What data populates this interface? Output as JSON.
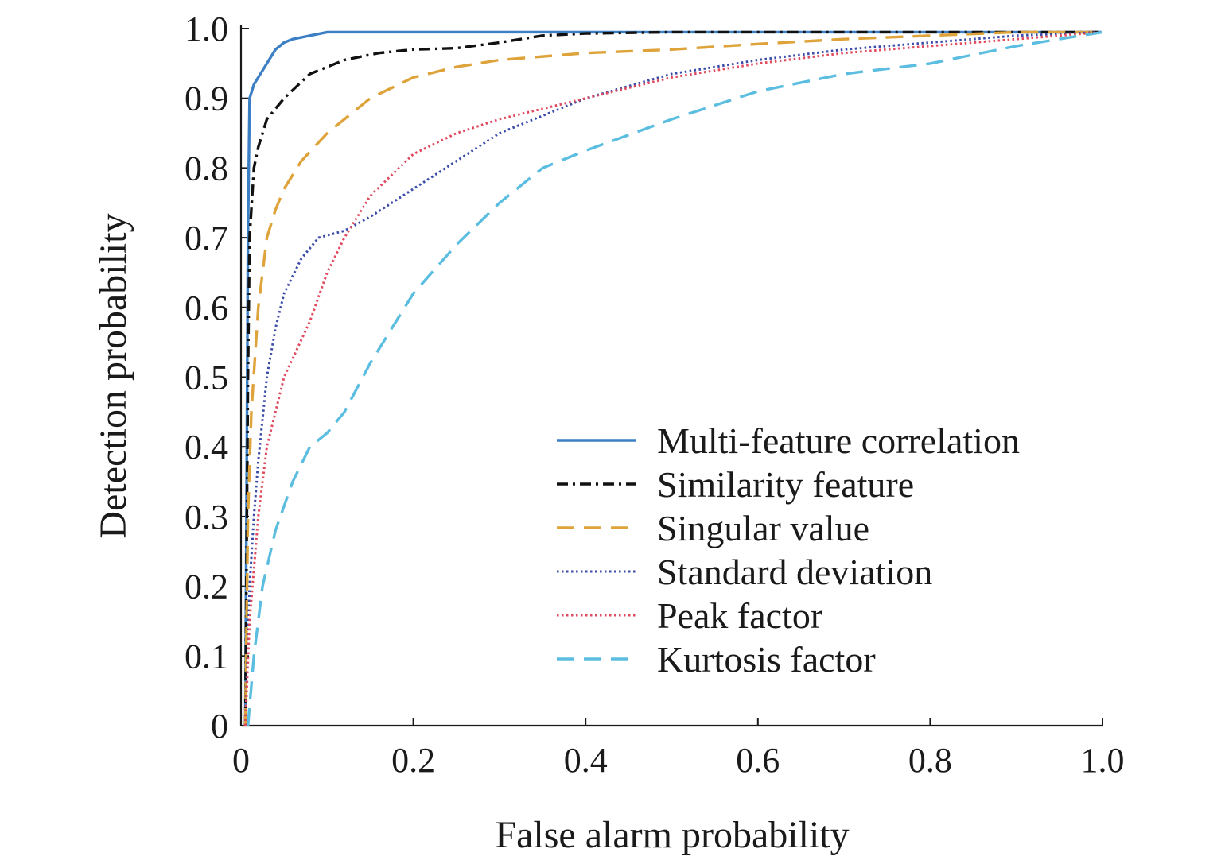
{
  "chart_data": {
    "type": "line",
    "title": "",
    "xlabel": "False alarm probability",
    "ylabel": "Detection probability",
    "xlim": [
      0,
      1.0
    ],
    "ylim": [
      0,
      1.0
    ],
    "x_ticks": [
      "0",
      "0.2",
      "0.4",
      "0.6",
      "0.8",
      "1.0"
    ],
    "y_ticks": [
      "0",
      "0.1",
      "0.2",
      "0.3",
      "0.4",
      "0.5",
      "0.6",
      "0.7",
      "0.8",
      "0.9",
      "1.0"
    ],
    "grid": false,
    "legend_position": "lower-right",
    "series": [
      {
        "name": "Multi-feature correlation",
        "color": "#3d7fc4",
        "style": "solid",
        "x": [
          0.005,
          0.008,
          0.01,
          0.015,
          0.02,
          0.03,
          0.04,
          0.05,
          0.06,
          0.08,
          0.1,
          0.2,
          0.4,
          0.6,
          0.8,
          1.0
        ],
        "y": [
          0.0,
          0.7,
          0.9,
          0.92,
          0.93,
          0.95,
          0.97,
          0.98,
          0.985,
          0.99,
          0.995,
          0.995,
          0.995,
          0.995,
          0.995,
          0.995
        ]
      },
      {
        "name": "Similarity feature",
        "color": "#111111",
        "style": "dashdot",
        "x": [
          0.005,
          0.008,
          0.01,
          0.015,
          0.02,
          0.03,
          0.05,
          0.08,
          0.12,
          0.16,
          0.2,
          0.25,
          0.3,
          0.35,
          0.4,
          0.5,
          0.7,
          1.0
        ],
        "y": [
          0.0,
          0.5,
          0.7,
          0.8,
          0.83,
          0.87,
          0.9,
          0.935,
          0.955,
          0.965,
          0.97,
          0.972,
          0.98,
          0.99,
          0.993,
          0.995,
          0.995,
          0.995
        ]
      },
      {
        "name": "Singular value",
        "color": "#dea33a",
        "style": "dashed",
        "x": [
          0.005,
          0.008,
          0.012,
          0.02,
          0.03,
          0.04,
          0.05,
          0.07,
          0.1,
          0.15,
          0.2,
          0.25,
          0.3,
          0.4,
          0.5,
          0.6,
          0.7,
          0.8,
          0.9,
          1.0
        ],
        "y": [
          0.0,
          0.3,
          0.45,
          0.6,
          0.7,
          0.74,
          0.77,
          0.81,
          0.85,
          0.9,
          0.93,
          0.945,
          0.955,
          0.965,
          0.97,
          0.978,
          0.985,
          0.99,
          0.995,
          0.995
        ]
      },
      {
        "name": "Standard deviation",
        "color": "#3b4ba8",
        "style": "dotted",
        "x": [
          0.005,
          0.01,
          0.015,
          0.02,
          0.03,
          0.04,
          0.05,
          0.07,
          0.09,
          0.12,
          0.15,
          0.2,
          0.25,
          0.3,
          0.4,
          0.5,
          0.6,
          0.7,
          0.8,
          0.9,
          1.0
        ],
        "y": [
          0.0,
          0.2,
          0.3,
          0.38,
          0.5,
          0.57,
          0.62,
          0.67,
          0.7,
          0.71,
          0.73,
          0.77,
          0.81,
          0.85,
          0.9,
          0.935,
          0.955,
          0.97,
          0.98,
          0.99,
          0.995
        ]
      },
      {
        "name": "Peak factor",
        "color": "#e04a5e",
        "style": "dotted",
        "x": [
          0.005,
          0.01,
          0.02,
          0.03,
          0.05,
          0.08,
          0.1,
          0.12,
          0.15,
          0.2,
          0.25,
          0.3,
          0.35,
          0.4,
          0.5,
          0.6,
          0.7,
          0.8,
          0.9,
          1.0
        ],
        "y": [
          0.0,
          0.15,
          0.3,
          0.4,
          0.5,
          0.58,
          0.65,
          0.7,
          0.76,
          0.82,
          0.85,
          0.87,
          0.885,
          0.9,
          0.93,
          0.95,
          0.965,
          0.975,
          0.985,
          0.995
        ]
      },
      {
        "name": "Kurtosis factor",
        "color": "#5bbde0",
        "style": "dashed",
        "x": [
          0.008,
          0.015,
          0.025,
          0.04,
          0.06,
          0.08,
          0.1,
          0.12,
          0.15,
          0.2,
          0.25,
          0.3,
          0.35,
          0.4,
          0.5,
          0.6,
          0.7,
          0.8,
          0.9,
          1.0
        ],
        "y": [
          0.0,
          0.1,
          0.2,
          0.28,
          0.35,
          0.4,
          0.42,
          0.45,
          0.52,
          0.62,
          0.69,
          0.75,
          0.8,
          0.825,
          0.87,
          0.91,
          0.935,
          0.95,
          0.975,
          0.995
        ]
      }
    ]
  }
}
